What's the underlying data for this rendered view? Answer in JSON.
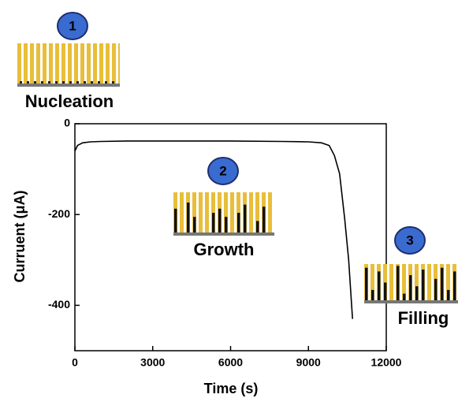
{
  "chart_data": {
    "type": "line",
    "x_label": "Time (s)",
    "y_label": "Curruent (μA)",
    "x": [
      0,
      100,
      300,
      600,
      1000,
      2000,
      4000,
      6000,
      8000,
      9000,
      9500,
      9800,
      10000,
      10200,
      10400,
      10550,
      10700
    ],
    "values": [
      -60,
      -48,
      -42,
      -40,
      -39,
      -38,
      -38,
      -38,
      -39,
      -40,
      -42,
      -48,
      -70,
      -110,
      -210,
      -300,
      -430
    ],
    "color": "#000000",
    "xlim": [
      0,
      12000
    ],
    "xticks": [
      0,
      3000,
      6000,
      9000,
      12000
    ],
    "ylim": [
      -500,
      0
    ],
    "yticks": [
      0,
      -200,
      -400
    ],
    "annotations": [
      {
        "number": 1,
        "label": "Nucleation"
      },
      {
        "number": 2,
        "label": "Growth"
      },
      {
        "number": 3,
        "label": "Filling"
      }
    ]
  }
}
